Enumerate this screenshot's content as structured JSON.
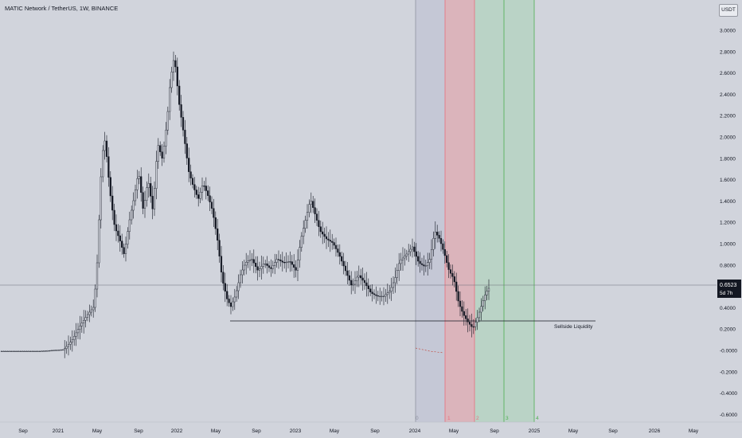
{
  "header": {
    "symbol_title": "MATIC Network / TetherUS, 1W, BINANCE",
    "currency_button": "USDT"
  },
  "price_scale": {
    "ticks": [
      "3.0000",
      "2.8000",
      "2.6000",
      "2.4000",
      "2.2000",
      "2.0000",
      "1.8000",
      "1.6000",
      "1.4000",
      "1.2000",
      "1.0000",
      "0.8000",
      "0.6000",
      "0.4000",
      "0.2000",
      "-0.0000",
      "-0.2000",
      "-0.4000",
      "-0.6000"
    ],
    "last_price": "0.6523",
    "countdown": "5d 7h"
  },
  "time_axis": {
    "labels": [
      "Sep",
      "2021",
      "May",
      "Sep",
      "2022",
      "May",
      "Sep",
      "2023",
      "May",
      "Sep",
      "2024",
      "May",
      "Sep",
      "2025",
      "May",
      "Sep",
      "2026",
      "May"
    ]
  },
  "annotations": {
    "liquidity_label": "Sellside Liquidity",
    "cycle_numbers": [
      "0",
      "1",
      "2",
      "3",
      "4"
    ]
  },
  "colors": {
    "background": "#d1d4dc",
    "candle": "#131722",
    "zone_neutral": "#c5c8d6",
    "zone_red": "#dbb4bb",
    "zone_green": "#bad3c6",
    "cycle_line_gray": "#8e92a0",
    "cycle_line_red": "#e86e7e",
    "cycle_line_green": "#4caf50",
    "price_label_bg": "#131722"
  }
}
